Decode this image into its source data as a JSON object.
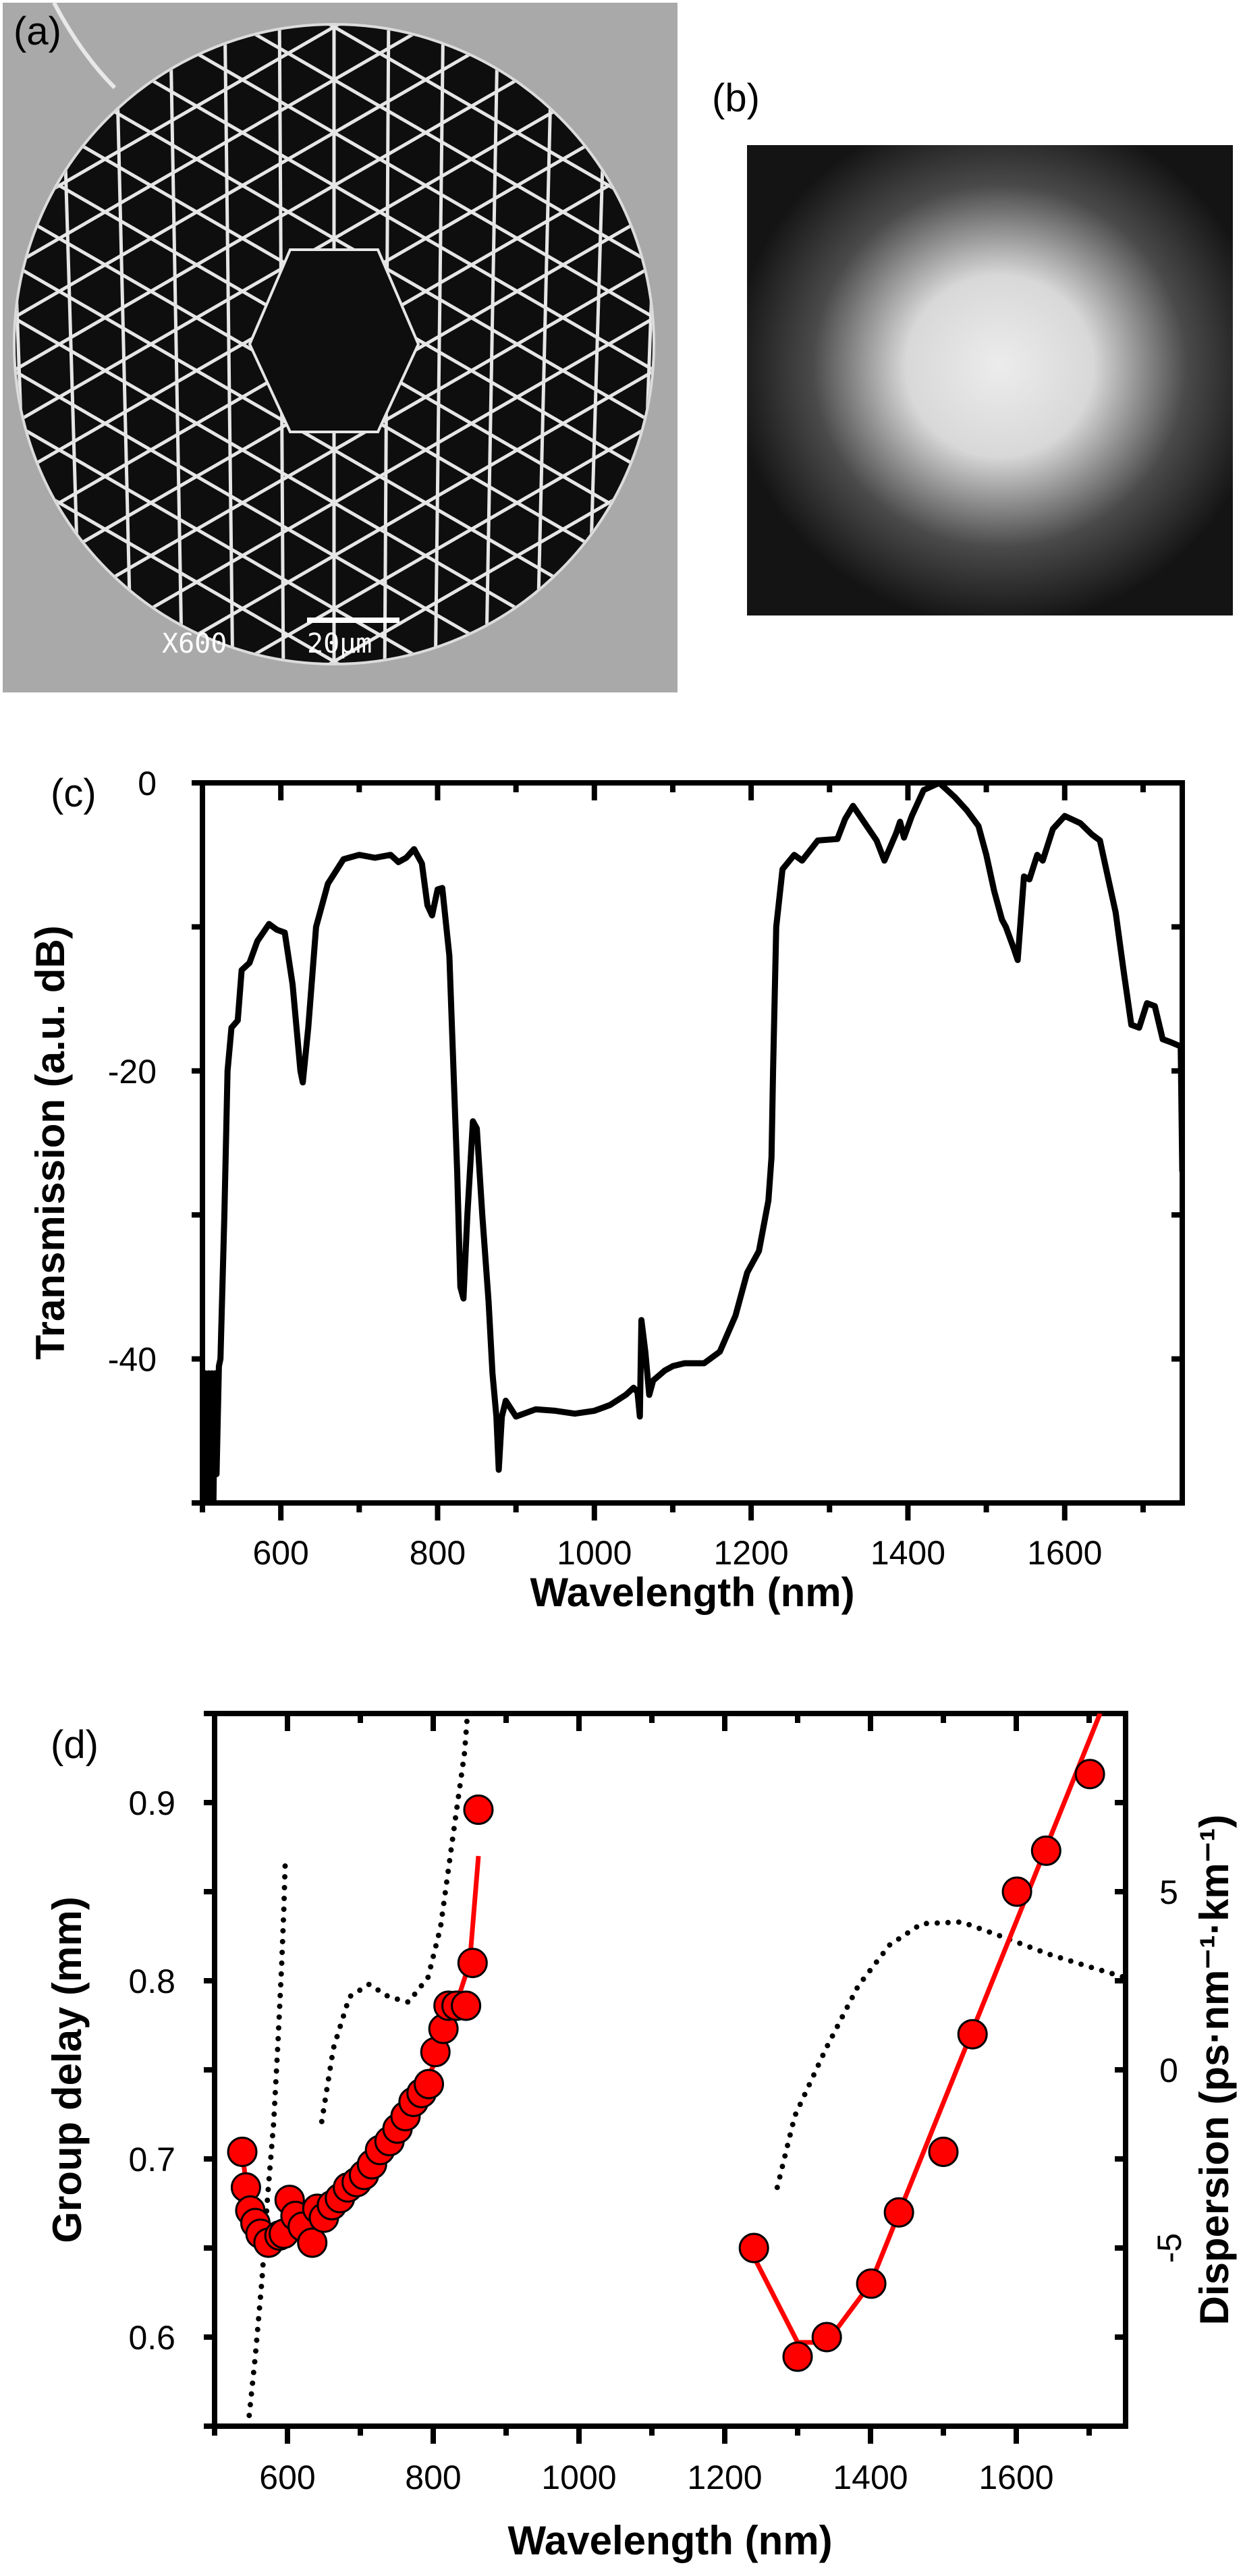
{
  "panels": {
    "a": {
      "label": "(a)",
      "sem_magnification": "X600",
      "sem_scale": "20µm"
    },
    "b": {
      "label": "(b)"
    },
    "c": {
      "label": "(c)"
    },
    "d": {
      "label": "(d)"
    }
  },
  "colors": {
    "fit": "#ff0000",
    "marker": "#ff0000",
    "trace": "#000000",
    "sem_background": "#a9a9a9"
  },
  "chart_data": [
    {
      "id": "c",
      "type": "line",
      "xlabel": "Wavelength (nm)",
      "ylabel": "Transmission (a.u. dB)",
      "xlim": [
        500,
        1750
      ],
      "ylim": [
        -50,
        0
      ],
      "xticks": [
        600,
        800,
        1000,
        1200,
        1400,
        1600
      ],
      "yticks": [
        0,
        -20,
        -40
      ],
      "grid": false,
      "series": [
        {
          "x": [
            502,
            504,
            506,
            508,
            510,
            512,
            514,
            516,
            518,
            521,
            523,
            528,
            532,
            537,
            545,
            550,
            560,
            570,
            585,
            595,
            605,
            615,
            625,
            628,
            635,
            645,
            660,
            680,
            700,
            720,
            740,
            750,
            760,
            770,
            780,
            787,
            793,
            800,
            806,
            815,
            825,
            829,
            833,
            838,
            845,
            850,
            857,
            865,
            870,
            875,
            878,
            882,
            887,
            900,
            925,
            950,
            975,
            1000,
            1020,
            1040,
            1050,
            1055,
            1058,
            1060,
            1065,
            1070,
            1075,
            1090,
            1100,
            1115,
            1140,
            1160,
            1180,
            1195,
            1210,
            1222,
            1226,
            1228,
            1232,
            1240,
            1255,
            1265,
            1285,
            1310,
            1320,
            1330,
            1345,
            1360,
            1370,
            1385,
            1390,
            1395,
            1405,
            1420,
            1440,
            1460,
            1475,
            1490,
            1500,
            1510,
            1520,
            1525,
            1535,
            1540,
            1548,
            1555,
            1565,
            1572,
            1585,
            1600,
            1620,
            1635,
            1645,
            1655,
            1665,
            1675,
            1685,
            1695,
            1705,
            1715,
            1725,
            1735,
            1748,
            1750
          ],
          "y": [
            -50,
            -41,
            -50,
            -41,
            -50,
            -41,
            -50,
            -41,
            -48,
            -40.5,
            -40,
            -30,
            -20,
            -17,
            -16.5,
            -13,
            -12.5,
            -11,
            -9.8,
            -10.2,
            -10.4,
            -14,
            -20,
            -20.8,
            -17,
            -10,
            -7,
            -5.3,
            -5,
            -5.2,
            -5,
            -5.5,
            -5.2,
            -4.6,
            -5.6,
            -8.5,
            -9.2,
            -7.4,
            -7.3,
            -12,
            -27,
            -35,
            -35.8,
            -30,
            -23.5,
            -24,
            -30,
            -36,
            -41,
            -44,
            -47.7,
            -44,
            -42.9,
            -44,
            -43.5,
            -43.6,
            -43.8,
            -43.6,
            -43.2,
            -42.5,
            -42,
            -42.3,
            -44,
            -37.3,
            -39.5,
            -42.5,
            -41.5,
            -40.8,
            -40.5,
            -40.3,
            -40.3,
            -39.5,
            -37,
            -34,
            -32.5,
            -29,
            -26,
            -20,
            -10,
            -6,
            -5,
            -5.4,
            -4,
            -3.9,
            -2.5,
            -1.6,
            -2.8,
            -4,
            -5.4,
            -3.5,
            -2.7,
            -3.8,
            -2.3,
            -0.5,
            0,
            -1,
            -1.9,
            -3,
            -5,
            -7.5,
            -9.5,
            -10,
            -11.5,
            -12.3,
            -6.5,
            -6.7,
            -5,
            -5.4,
            -3.2,
            -2.3,
            -2.8,
            -3.6,
            -4,
            -6.5,
            -9,
            -13,
            -16.8,
            -17,
            -15.3,
            -15.5,
            -17.8,
            -18,
            -18.3,
            -27
          ]
        }
      ]
    },
    {
      "id": "d",
      "type": "scatter",
      "xlabel": "Wavelength (nm)",
      "ylabel": "Group delay (mm)",
      "ylabel_right": "Dispersion (ps·nm⁻¹·km⁻¹)",
      "xlim": [
        500,
        1750
      ],
      "ylim": [
        0.55,
        0.95
      ],
      "ylim_right": [
        -10,
        10
      ],
      "xticks": [
        600,
        800,
        1000,
        1200,
        1400,
        1600
      ],
      "yticks": [
        0.6,
        0.7,
        0.8,
        0.9
      ],
      "yticks_right": [
        -5,
        0,
        5
      ],
      "grid": false,
      "group_delay_points": {
        "x": [
          538,
          543,
          549,
          556,
          563,
          574,
          589,
          595,
          603,
          611,
          621,
          634,
          641,
          650,
          661,
          672,
          683,
          695,
          705,
          716,
          727,
          740,
          751,
          762,
          773,
          784,
          794,
          803,
          814,
          821,
          832,
          845,
          854,
          862,
          1240,
          1300,
          1340,
          1401,
          1439,
          1500,
          1540,
          1601,
          1641,
          1701
        ],
        "y": [
          0.704,
          0.684,
          0.671,
          0.664,
          0.658,
          0.653,
          0.657,
          0.658,
          0.677,
          0.668,
          0.662,
          0.653,
          0.672,
          0.667,
          0.674,
          0.678,
          0.684,
          0.687,
          0.691,
          0.697,
          0.705,
          0.71,
          0.717,
          0.724,
          0.732,
          0.737,
          0.742,
          0.76,
          0.773,
          0.786,
          0.786,
          0.786,
          0.81,
          0.896,
          0.65,
          0.589,
          0.6,
          0.63,
          0.67,
          0.704,
          0.77,
          0.85,
          0.873,
          0.916
        ]
      },
      "group_delay_fit": [
        {
          "x": [
            538,
            545,
            555,
            570,
            590,
            600,
            603,
            620,
            640,
            680,
            720,
            760,
            800,
            830,
            850,
            862
          ],
          "y": [
            0.704,
            0.68,
            0.665,
            0.655,
            0.657,
            0.662,
            0.672,
            0.667,
            0.667,
            0.682,
            0.698,
            0.722,
            0.752,
            0.785,
            0.81,
            0.87
          ]
        },
        {
          "x": [
            1240,
            1300,
            1340,
            1400,
            1715
          ],
          "y": [
            0.645,
            0.597,
            0.597,
            0.63,
            0.95
          ]
        }
      ],
      "dispersion": [
        {
          "x": [
            546,
            556,
            565,
            573,
            581,
            587,
            592,
            595,
            597
          ],
          "y": [
            -10,
            -8,
            -5.9,
            -3.5,
            -1.5,
            0.8,
            2.95,
            4.5,
            5.9
          ]
        },
        {
          "x": [
            647,
            663,
            685,
            712,
            739,
            766,
            793,
            810,
            826,
            843,
            847
          ],
          "y": [
            -1.45,
            0.6,
            2.05,
            2.4,
            2.05,
            1.9,
            2.6,
            4.0,
            6.4,
            8.9,
            10
          ]
        },
        {
          "x": [
            1272,
            1296,
            1339,
            1383,
            1426,
            1470,
            1525,
            1579,
            1644,
            1699,
            1748
          ],
          "y": [
            -3.3,
            -1.3,
            0.6,
            2.35,
            3.5,
            4.1,
            4.15,
            3.75,
            3.25,
            2.9,
            2.6
          ]
        }
      ]
    }
  ]
}
